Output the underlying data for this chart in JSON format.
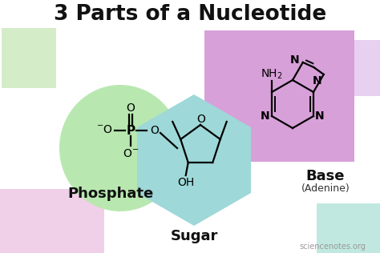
{
  "title": "3 Parts of a Nucleotide",
  "title_fontsize": 19,
  "title_fontweight": "bold",
  "background_color": "#ffffff",
  "phosphate_color": "#b8e8b0",
  "sugar_color": "#9ed8d8",
  "base_color": "#d8a0d8",
  "label_phosphate": "Phosphate",
  "label_sugar": "Sugar",
  "label_base": "Base",
  "label_base_sub": "(Adenine)",
  "watermark": "sciencenotes.org",
  "fig_width": 4.74,
  "fig_height": 3.16,
  "dpi": 100,
  "corner_tl_color": "#d4ecc8",
  "corner_tr_color": "#e8d0f0",
  "corner_bl_color": "#f0d0e8",
  "corner_br_color": "#c0e8e0"
}
